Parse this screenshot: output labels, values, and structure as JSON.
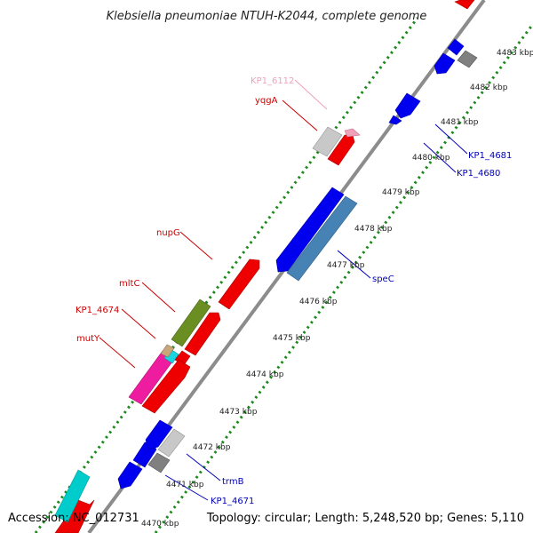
{
  "map": {
    "title": "Klebsiella pneumoniae NTUH-K2044, complete genome",
    "accession": "Accession: NC_012731",
    "summary": "Topology: circular; Length: 5,248,520 bp; Genes: 5,110"
  },
  "colors": {
    "backbone": "#8c8c8c",
    "tick_dots": "#1a8a1a",
    "forward_label": "#cc0000",
    "reverse_label": "#0000bb",
    "pink_label": "#f0a0b8"
  },
  "ticks": [
    {
      "label": "4470 kbp"
    },
    {
      "label": "4471 kbp"
    },
    {
      "label": "4472 kbp"
    },
    {
      "label": "4473 kbp"
    },
    {
      "label": "4474 kbp"
    },
    {
      "label": "4475 kbp"
    },
    {
      "label": "4476 kbp"
    },
    {
      "label": "4477 kbp"
    },
    {
      "label": "4478 kbp"
    },
    {
      "label": "4479 kbp"
    },
    {
      "label": "4480 kbp"
    },
    {
      "label": "4481 kbp"
    },
    {
      "label": "4482 kbp"
    },
    {
      "label": "4483 kbp"
    }
  ],
  "gene_labels": [
    {
      "id": "kp1-6112",
      "text": "KP1_6112",
      "color": "#f0a0b8"
    },
    {
      "id": "yqga",
      "text": "yqgA",
      "color": "#cc0000"
    },
    {
      "id": "nupg",
      "text": "nupG",
      "color": "#cc0000"
    },
    {
      "id": "mltc",
      "text": "mltC",
      "color": "#cc0000"
    },
    {
      "id": "kp1-4674",
      "text": "KP1_4674",
      "color": "#cc0000"
    },
    {
      "id": "muty",
      "text": "mutY",
      "color": "#cc0000"
    },
    {
      "id": "kp1-4681",
      "text": "KP1_4681",
      "color": "#0000bb"
    },
    {
      "id": "kp1-4680",
      "text": "KP1_4680",
      "color": "#0000bb"
    },
    {
      "id": "spec",
      "text": "speC",
      "color": "#0000bb"
    },
    {
      "id": "trmb",
      "text": "trmB",
      "color": "#0000bb"
    },
    {
      "id": "kp1-4671",
      "text": "KP1_4671",
      "color": "#0000bb"
    }
  ]
}
